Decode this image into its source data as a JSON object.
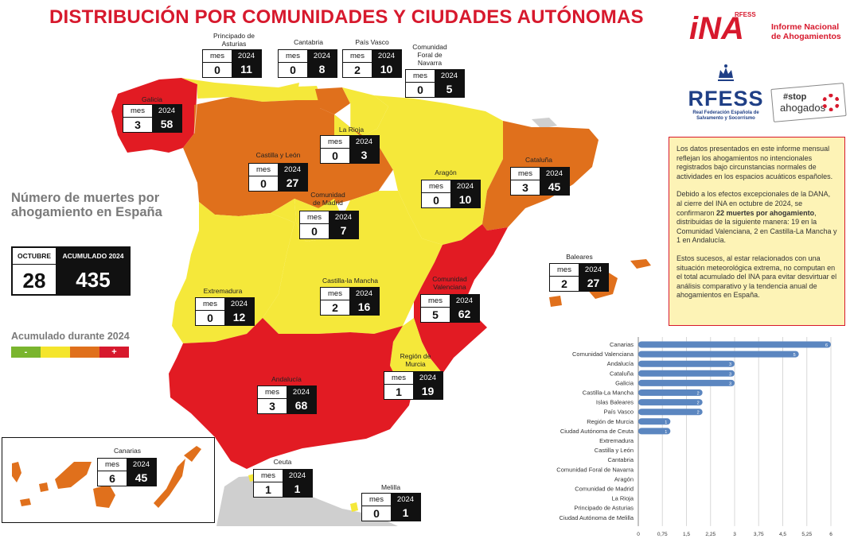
{
  "title": "DISTRIBUCIÓN POR COMUNIDADES Y CIUDADES AUTÓNOMAS",
  "logos": {
    "ina_mark": "iNA",
    "ina_sub": "RFESS",
    "ina_text": "Informe Nacional de Ahogamientos",
    "rfess_word": "RFESS",
    "rfess_sub": "Real Federación Española de Salvamento y Socorrismo",
    "stop_line1": "#stop",
    "stop_line2": "ahogados"
  },
  "box_headers": {
    "mes": "mes",
    "year": "2024"
  },
  "regions": {
    "asturias": {
      "name": "Principado de Asturias",
      "mes": "0",
      "ytd": "11"
    },
    "cantabria": {
      "name": "Cantabria",
      "mes": "0",
      "ytd": "8"
    },
    "pais_vasco": {
      "name": "País Vasco",
      "mes": "2",
      "ytd": "10"
    },
    "navarra": {
      "name": "Comunidad Foral de Navarra",
      "mes": "0",
      "ytd": "5"
    },
    "galicia": {
      "name": "Galicia",
      "mes": "3",
      "ytd": "58"
    },
    "rioja": {
      "name": "La Rioja",
      "mes": "0",
      "ytd": "3"
    },
    "castilla_leon": {
      "name": "Castilla y León",
      "mes": "0",
      "ytd": "27"
    },
    "cataluna": {
      "name": "Cataluña",
      "mes": "3",
      "ytd": "45"
    },
    "aragon": {
      "name": "Aragón",
      "mes": "0",
      "ytd": "10"
    },
    "madrid": {
      "name": "Comunidad de Madrid",
      "mes": "0",
      "ytd": "7"
    },
    "baleares": {
      "name": "Baleares",
      "mes": "2",
      "ytd": "27"
    },
    "extremadura": {
      "name": "Extremadura",
      "mes": "0",
      "ytd": "12"
    },
    "castilla_mancha": {
      "name": "Castilla-la Mancha",
      "mes": "2",
      "ytd": "16"
    },
    "valenciana": {
      "name": "Comunidad Valenciana",
      "mes": "5",
      "ytd": "62"
    },
    "murcia": {
      "name": "Región de Murcia",
      "mes": "1",
      "ytd": "19"
    },
    "andalucia": {
      "name": "Andalucía",
      "mes": "3",
      "ytd": "68"
    },
    "canarias": {
      "name": "Canarias",
      "mes": "6",
      "ytd": "45"
    },
    "ceuta": {
      "name": "Ceuta",
      "mes": "1",
      "ytd": "1"
    },
    "melilla": {
      "name": "Melilla",
      "mes": "0",
      "ytd": "1"
    }
  },
  "summary": {
    "title": "Número de muertes por ahogamiento en España",
    "month_label": "OCTUBRE",
    "month_value": "28",
    "ytd_label": "ACUMULADO 2024",
    "ytd_value": "435"
  },
  "legend": {
    "title": "Acumulado durante 2024",
    "minus": "-",
    "plus": "+",
    "colors": [
      "#7ab52e",
      "#f4e52c",
      "#e0701c",
      "#d7192d"
    ]
  },
  "map_colors": {
    "red": "#e21b23",
    "orange": "#e0701c",
    "yellow": "#f5e83a",
    "gray": "#c8c8c8"
  },
  "info": {
    "p1": "Los datos presentados en este informe mensual reflejan los ahogamientos no intencionales registrados bajo circunstancias normales de actividades en los espacios acuáticos españoles.",
    "p2a": "Debido a los efectos excepcionales de la DANA, al cierre del INA en octubre de 2024, se confirmaron ",
    "p2b": "22 muertes por ahogamiento",
    "p2c": ", distribuidas de la siguiente manera: 19 en la Comunidad Valenciana, 2 en Castilla-La Mancha y 1 en Andalucía.",
    "p3": "Estos sucesos, al estar relacionados con una situación meteorológica extrema, no computan en el total acumulado del INA para evitar desvirtuar el análisis comparativo y la tendencia anual de ahogamientos en España."
  },
  "chart_data": {
    "type": "bar",
    "orientation": "horizontal",
    "categories": [
      "Canarias",
      "Comunidad Valenciana",
      "Andalucía",
      "Cataluña",
      "Galicia",
      "Castilla-La Mancha",
      "Islas Baleares",
      "País Vasco",
      "Región de Murcia",
      "Ciudad Autónoma de Ceuta",
      "Extremadura",
      "Castilla y León",
      "Cantabria",
      "Comunidad Foral de Navarra",
      "Aragón",
      "Comunidad de Madrid",
      "La Rioja",
      "Principado de Asturias",
      "Ciudad Autónoma de Melilla"
    ],
    "values": [
      6,
      5,
      3,
      3,
      3,
      2,
      2,
      2,
      1,
      1,
      0,
      0,
      0,
      0,
      0,
      0,
      0,
      0,
      0
    ],
    "xticks": [
      "0",
      "0,75",
      "1,5",
      "2,25",
      "3",
      "3,75",
      "4,5",
      "5,25",
      "6"
    ],
    "xlim": [
      0,
      6
    ],
    "grid": true,
    "bar_color": "#5b86c0"
  }
}
